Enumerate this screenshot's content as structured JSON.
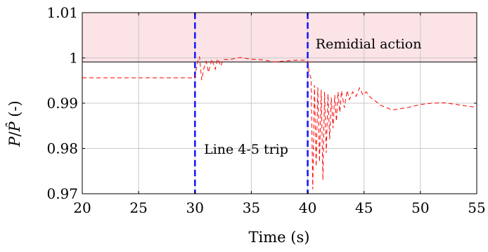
{
  "chart_data": {
    "type": "line",
    "title": "",
    "xlabel": "Time (s)",
    "ylabel_parts": {
      "P": "P",
      "slash": "/",
      "Phat": "P̂",
      "unit": " (-)"
    },
    "xlim": [
      20,
      55
    ],
    "ylim": [
      0.97,
      1.01
    ],
    "grid": true,
    "x_ticks": [
      20,
      25,
      30,
      35,
      40,
      45,
      50,
      55
    ],
    "x_tick_labels": [
      "20",
      "25",
      "30",
      "35",
      "40",
      "45",
      "50",
      "55"
    ],
    "y_ticks": [
      0.97,
      0.98,
      0.99,
      1.0,
      1.01
    ],
    "y_tick_labels": [
      "0.97",
      "0.98",
      "0.99",
      "1",
      "1.01"
    ],
    "threshold": {
      "y": 0.9991,
      "color": "#000000"
    },
    "shaded_region": {
      "y_from": 0.9991,
      "y_to": 1.01,
      "color": "#fbe3e6"
    },
    "event_lines": [
      {
        "x": 30,
        "color": "#1a1aff"
      },
      {
        "x": 40,
        "color": "#1a1aff"
      }
    ],
    "annotations": [
      {
        "text": "Remidial action",
        "x": 40.7,
        "y": 1.0021
      },
      {
        "text": "Line 4-5 trip",
        "x": 30.8,
        "y": 0.9788
      }
    ],
    "series": [
      {
        "color": "#ff0000",
        "dash": "6,4",
        "points": [
          [
            20,
            0.9956
          ],
          [
            25,
            0.9956
          ],
          [
            30,
            0.9956
          ],
          [
            30.2,
            0.9988
          ],
          [
            30.4,
            1.0003
          ],
          [
            30.6,
            0.9951
          ],
          [
            30.8,
            0.9978
          ],
          [
            31.0,
            0.9992
          ],
          [
            31.2,
            0.9968
          ],
          [
            31.5,
            0.9997
          ],
          [
            31.8,
            0.9975
          ],
          [
            32.0,
            0.9998
          ],
          [
            32.3,
            0.9982
          ],
          [
            32.5,
            0.9997
          ],
          [
            33.0,
            0.9996
          ],
          [
            34.0,
            1.0001
          ],
          [
            35.0,
            0.9997
          ],
          [
            36.0,
            0.9996
          ],
          [
            37.0,
            0.9991
          ],
          [
            38.0,
            0.9993
          ],
          [
            39.0,
            0.9995
          ],
          [
            39.9,
            0.9995
          ],
          [
            40.0,
            0.9992
          ],
          [
            40.15,
            0.9965
          ],
          [
            40.3,
            0.9955
          ],
          [
            40.45,
            0.971
          ],
          [
            40.6,
            0.994
          ],
          [
            40.75,
            0.976
          ],
          [
            40.9,
            0.9935
          ],
          [
            41.05,
            0.977
          ],
          [
            41.2,
            0.993
          ],
          [
            41.35,
            0.973
          ],
          [
            41.5,
            0.9925
          ],
          [
            41.65,
            0.979
          ],
          [
            41.8,
            0.992
          ],
          [
            41.95,
            0.982
          ],
          [
            42.1,
            0.9912
          ],
          [
            42.25,
            0.9845
          ],
          [
            42.4,
            0.9918
          ],
          [
            42.55,
            0.986
          ],
          [
            42.7,
            0.9925
          ],
          [
            42.85,
            0.988
          ],
          [
            43.0,
            0.9927
          ],
          [
            43.25,
            0.989
          ],
          [
            43.5,
            0.9928
          ],
          [
            43.7,
            0.9908
          ],
          [
            44.0,
            0.9925
          ],
          [
            44.3,
            0.9915
          ],
          [
            44.6,
            0.9934
          ],
          [
            44.9,
            0.9918
          ],
          [
            45.2,
            0.9925
          ],
          [
            45.6,
            0.9912
          ],
          [
            46.0,
            0.9905
          ],
          [
            46.5,
            0.9895
          ],
          [
            47.0,
            0.989
          ],
          [
            47.5,
            0.9885
          ],
          [
            48.0,
            0.9887
          ],
          [
            49.0,
            0.9891
          ],
          [
            50.0,
            0.9897
          ],
          [
            51.0,
            0.99
          ],
          [
            52.0,
            0.9901
          ],
          [
            53.0,
            0.9898
          ],
          [
            54.0,
            0.9894
          ],
          [
            55.0,
            0.9891
          ]
        ]
      }
    ]
  }
}
